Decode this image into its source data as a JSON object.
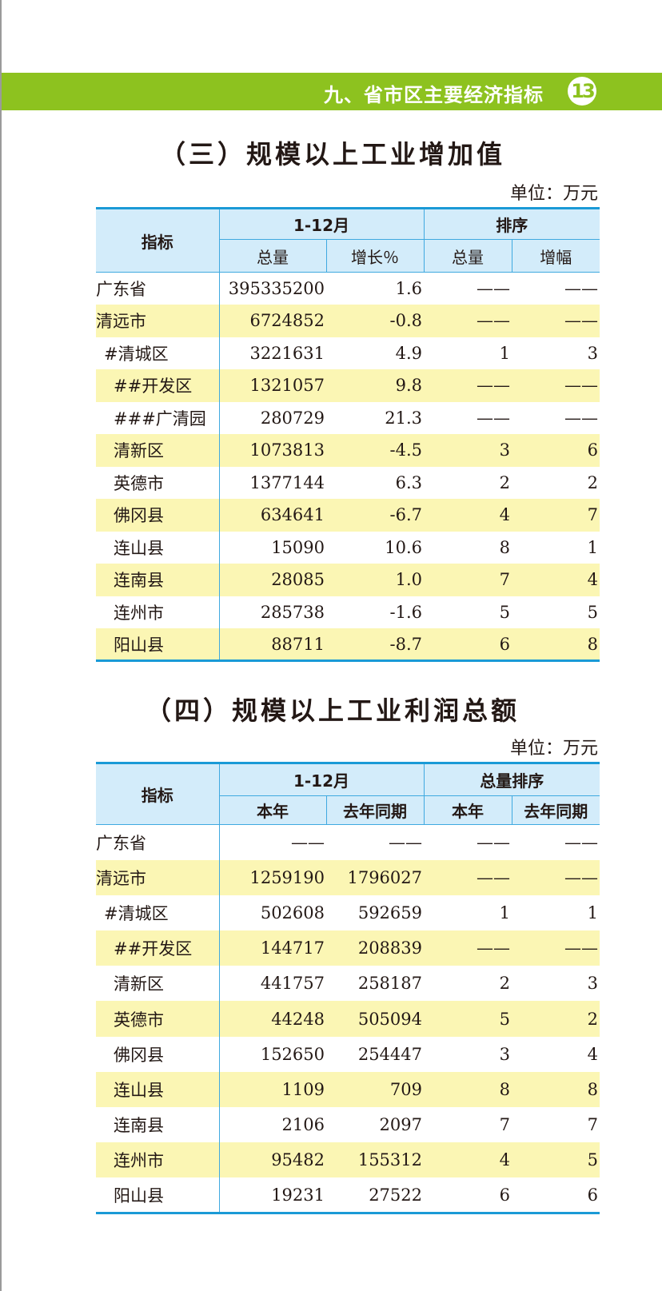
{
  "header": {
    "chapter": "九、省市区主要经济指标",
    "page": "13"
  },
  "table1": {
    "title": "（三）规模以上工业增加值",
    "unit": "单位：万元",
    "head": {
      "indicator": "指标",
      "period": "1-12月",
      "rank": "排序",
      "total": "总量",
      "growth": "增长％",
      "rank_total": "总量",
      "rank_growth": "增幅"
    },
    "rows": [
      {
        "name": "广东省",
        "level": 0,
        "c": [
          "395335200",
          "1.6",
          "——",
          "——"
        ]
      },
      {
        "name": "清远市",
        "level": 0,
        "c": [
          "6724852",
          "-0.8",
          "——",
          "——"
        ]
      },
      {
        "name": "#清城区",
        "level": 1,
        "c": [
          "3221631",
          "4.9",
          "1",
          "3"
        ]
      },
      {
        "name": "##开发区",
        "level": 2,
        "c": [
          "1321057",
          "9.8",
          "——",
          "——"
        ]
      },
      {
        "name": "###广清园",
        "level": 2,
        "c": [
          "280729",
          "21.3",
          "——",
          "——"
        ]
      },
      {
        "name": "清新区",
        "level": 2,
        "c": [
          "1073813",
          "-4.5",
          "3",
          "6"
        ]
      },
      {
        "name": "英德市",
        "level": 2,
        "c": [
          "1377144",
          "6.3",
          "2",
          "2"
        ]
      },
      {
        "name": "佛冈县",
        "level": 2,
        "c": [
          "634641",
          "-6.7",
          "4",
          "7"
        ]
      },
      {
        "name": "连山县",
        "level": 2,
        "c": [
          "15090",
          "10.6",
          "8",
          "1"
        ]
      },
      {
        "name": "连南县",
        "level": 2,
        "c": [
          "28085",
          "1.0",
          "7",
          "4"
        ]
      },
      {
        "name": "连州市",
        "level": 2,
        "c": [
          "285738",
          "-1.6",
          "5",
          "5"
        ]
      },
      {
        "name": "阳山县",
        "level": 2,
        "c": [
          "88711",
          "-8.7",
          "6",
          "8"
        ]
      }
    ]
  },
  "table2": {
    "title": "（四）规模以上工业利润总额",
    "unit": "单位：万元",
    "head": {
      "indicator": "指标",
      "period": "1-12月",
      "rank": "总量排序",
      "this_year": "本年",
      "last_year": "去年同期",
      "rank_this": "本年",
      "rank_last": "去年同期"
    },
    "rows": [
      {
        "name": "广东省",
        "level": 0,
        "c": [
          "——",
          "——",
          "——",
          "——"
        ]
      },
      {
        "name": "清远市",
        "level": 0,
        "c": [
          "1259190",
          "1796027",
          "——",
          "——"
        ]
      },
      {
        "name": "#清城区",
        "level": 1,
        "c": [
          "502608",
          "592659",
          "1",
          "1"
        ]
      },
      {
        "name": "##开发区",
        "level": 2,
        "c": [
          "144717",
          "208839",
          "——",
          "——"
        ]
      },
      {
        "name": "清新区",
        "level": 2,
        "c": [
          "441757",
          "258187",
          "2",
          "3"
        ]
      },
      {
        "name": "英德市",
        "level": 2,
        "c": [
          "44248",
          "505094",
          "5",
          "2"
        ]
      },
      {
        "name": "佛冈县",
        "level": 2,
        "c": [
          "152650",
          "254447",
          "3",
          "4"
        ]
      },
      {
        "name": "连山县",
        "level": 2,
        "c": [
          "1109",
          "709",
          "8",
          "8"
        ]
      },
      {
        "name": "连南县",
        "level": 2,
        "c": [
          "2106",
          "2097",
          "7",
          "7"
        ]
      },
      {
        "name": "连州市",
        "level": 2,
        "c": [
          "95482",
          "155312",
          "4",
          "5"
        ]
      },
      {
        "name": "阳山县",
        "level": 2,
        "c": [
          "19231",
          "27522",
          "6",
          "6"
        ]
      }
    ]
  },
  "colors": {
    "band": "#8dc21f",
    "header_fill": "#d3ecfa",
    "rule": "#1a9ad6",
    "stripe": "#fbf6b4"
  }
}
